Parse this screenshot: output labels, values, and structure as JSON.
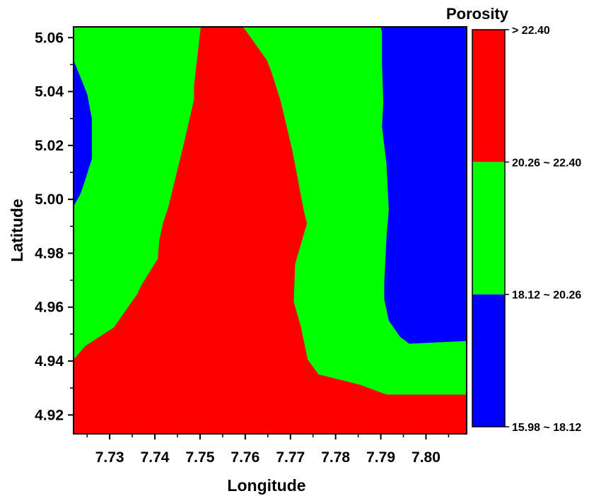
{
  "chart_data": {
    "type": "heatmap",
    "subtype": "filled-contour",
    "xlabel": "Longitude",
    "ylabel": "Latitude",
    "xlim": [
      7.722,
      7.809
    ],
    "ylim": [
      4.913,
      5.064
    ],
    "x_ticks": [
      "7.73",
      "7.74",
      "7.75",
      "7.76",
      "7.77",
      "7.78",
      "7.79",
      "7.80"
    ],
    "y_ticks": [
      "4.92",
      "4.94",
      "4.96",
      "4.98",
      "5.00",
      "5.02",
      "5.04",
      "5.06"
    ],
    "legend": {
      "title": "Porosity",
      "placement": "right",
      "levels": [
        {
          "label": "> 22.40",
          "color": "#ff0000"
        },
        {
          "label": "20.26 ~ 22.40",
          "color": "#00ff00"
        },
        {
          "label": "18.12 ~ 20.26",
          "color": "#0000ff"
        },
        {
          "label": "15.98 ~ 18.12",
          "color": "#0000ff"
        }
      ]
    },
    "regions": [
      {
        "name": "green-zone",
        "color": "#00ff00",
        "points": [
          [
            7.722,
            4.913
          ],
          [
            7.809,
            4.913
          ],
          [
            7.809,
            5.064
          ],
          [
            7.722,
            5.064
          ]
        ]
      },
      {
        "name": "red-zone",
        "color": "#ff0000",
        "points": [
          [
            7.7502,
            5.064
          ],
          [
            7.7595,
            5.064
          ],
          [
            7.7648,
            5.0515
          ],
          [
            7.7658,
            5.047
          ],
          [
            7.7678,
            5.0365
          ],
          [
            7.7704,
            5.018
          ],
          [
            7.7729,
            4.996
          ],
          [
            7.7736,
            4.991
          ],
          [
            7.7723,
            4.9835
          ],
          [
            7.771,
            4.976
          ],
          [
            7.7707,
            4.962
          ],
          [
            7.7723,
            4.9525
          ],
          [
            7.7738,
            4.9405
          ],
          [
            7.7762,
            4.935
          ],
          [
            7.7853,
            4.9312
          ],
          [
            7.7913,
            4.9275
          ],
          [
            7.7947,
            4.9275
          ],
          [
            7.809,
            4.9275
          ],
          [
            7.809,
            4.913
          ],
          [
            7.722,
            4.913
          ],
          [
            7.722,
            4.9405
          ],
          [
            7.7246,
            4.9455
          ],
          [
            7.731,
            4.9525
          ],
          [
            7.7345,
            4.961
          ],
          [
            7.7362,
            4.965
          ],
          [
            7.737,
            4.968
          ],
          [
            7.7407,
            4.978
          ],
          [
            7.741,
            4.9845
          ],
          [
            7.7418,
            4.991
          ],
          [
            7.743,
            4.997
          ],
          [
            7.7465,
            5.021
          ],
          [
            7.7487,
            5.037
          ],
          [
            7.7487,
            5.042
          ],
          [
            7.7502,
            5.064
          ]
        ]
      },
      {
        "name": "blue-zone-left",
        "color": "#0000ff",
        "points": [
          [
            7.722,
            5.0515
          ],
          [
            7.725,
            5.039
          ],
          [
            7.726,
            5.03
          ],
          [
            7.726,
            5.015
          ],
          [
            7.7245,
            5.007
          ],
          [
            7.7235,
            5.002
          ],
          [
            7.722,
            4.9975
          ]
        ]
      },
      {
        "name": "blue-zone-right",
        "color": "#0000ff",
        "points": [
          [
            7.79,
            5.064
          ],
          [
            7.809,
            5.064
          ],
          [
            7.809,
            4.9475
          ],
          [
            7.7963,
            4.9465
          ],
          [
            7.7943,
            4.949
          ],
          [
            7.7918,
            4.955
          ],
          [
            7.7908,
            4.963
          ],
          [
            7.7908,
            4.969
          ],
          [
            7.7913,
            4.986
          ],
          [
            7.7918,
            4.996
          ],
          [
            7.7913,
            5.013
          ],
          [
            7.7908,
            5.02
          ],
          [
            7.7903,
            5.027
          ],
          [
            7.7906,
            5.036
          ],
          [
            7.7903,
            5.05
          ],
          [
            7.7903,
            5.062
          ],
          [
            7.79,
            5.064
          ]
        ]
      }
    ]
  }
}
